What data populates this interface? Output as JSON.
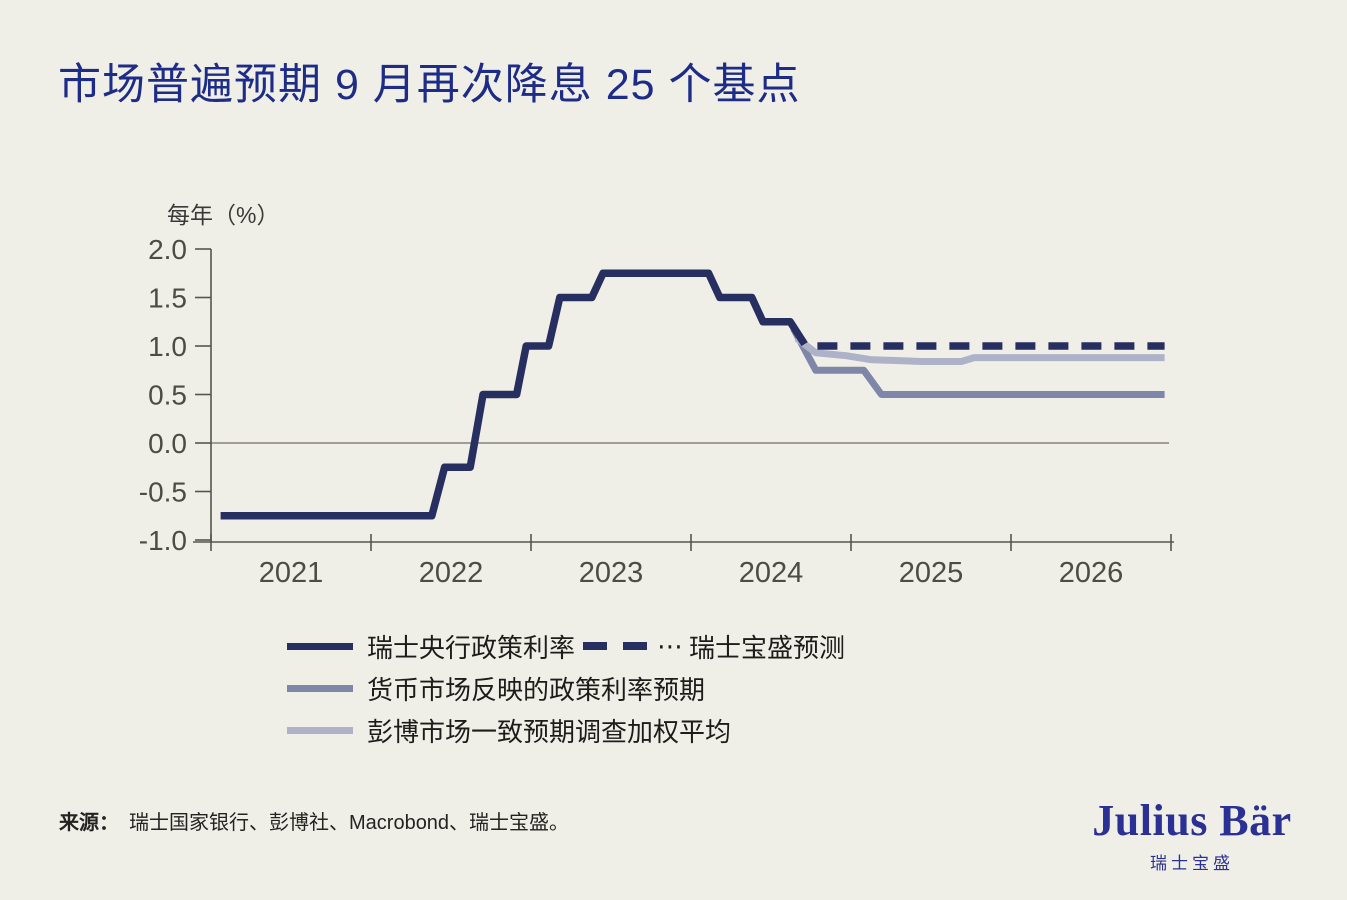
{
  "title": "市场普遍预期 9 月再次降息 25 个基点",
  "chart_data": {
    "type": "line",
    "title": "市场普遍预期 9 月再次降息 25 个基点",
    "y_axis_label": "每年（%）",
    "xlabel": "",
    "ylabel": "每年（%）",
    "ylim": [
      -1.0,
      2.0
    ],
    "xlim": [
      2020.9,
      2027.05
    ],
    "grid": false,
    "zero_line": true,
    "legend_position": "below",
    "y_ticks": [
      2.0,
      1.5,
      1.0,
      0.5,
      0.0,
      -0.5,
      -1.0
    ],
    "y_tick_labels": [
      "2.0",
      "1.5",
      "1.0",
      "0.5",
      "0.0",
      "-0.5",
      "-1.0"
    ],
    "x_tick_years": [
      2021,
      2022,
      2023,
      2024,
      2025,
      2026,
      2027
    ],
    "x_labels": [
      "2021",
      "2022",
      "2023",
      "2024",
      "2025",
      "2026"
    ],
    "series": [
      {
        "id": "money-market-expectations",
        "name": "货币市场反映的政策利率预期",
        "color_key": "medium_blue_gray",
        "width": 7,
        "dash": null,
        "points": [
          [
            2024.64,
            1.18
          ],
          [
            2024.78,
            0.75
          ],
          [
            2025.08,
            0.75
          ],
          [
            2025.19,
            0.5
          ],
          [
            2026.96,
            0.5
          ]
        ]
      },
      {
        "id": "bloomberg-consensus-survey",
        "name": "彭博市场一致预期调查加权平均",
        "color_key": "light_blue_gray",
        "width": 7,
        "dash": null,
        "points": [
          [
            2024.66,
            1.08
          ],
          [
            2024.78,
            0.93
          ],
          [
            2024.97,
            0.9
          ],
          [
            2025.12,
            0.86
          ],
          [
            2025.44,
            0.84
          ],
          [
            2025.69,
            0.84
          ],
          [
            2025.77,
            0.88
          ],
          [
            2026.96,
            0.88
          ]
        ]
      },
      {
        "id": "snb-policy-rate",
        "name": "瑞士央行政策利率",
        "color_key": "navy",
        "width": 7.5,
        "dash": null,
        "points": [
          [
            2021.06,
            -0.75
          ],
          [
            2022.38,
            -0.75
          ],
          [
            2022.46,
            -0.25
          ],
          [
            2022.62,
            -0.25
          ],
          [
            2022.7,
            0.5
          ],
          [
            2022.91,
            0.5
          ],
          [
            2022.97,
            1.0
          ],
          [
            2023.11,
            1.0
          ],
          [
            2023.18,
            1.5
          ],
          [
            2023.38,
            1.5
          ],
          [
            2023.45,
            1.75
          ],
          [
            2024.11,
            1.75
          ],
          [
            2024.18,
            1.5
          ],
          [
            2024.38,
            1.5
          ],
          [
            2024.45,
            1.25
          ],
          [
            2024.62,
            1.25
          ],
          [
            2024.71,
            1.02
          ]
        ]
      },
      {
        "id": "julius-baer-forecast",
        "name": "瑞士宝盛预测",
        "color_key": "navy",
        "width": 7.5,
        "dash": "20 13",
        "points": [
          [
            2024.79,
            1.0
          ],
          [
            2026.96,
            1.0
          ]
        ]
      }
    ]
  },
  "legend": {
    "snb_label": "瑞士央行政策利率",
    "forecast_dots": "⋯",
    "forecast_label": "瑞士宝盛预测",
    "money_market_label": "货币市场反映的政策利率预期",
    "bloomberg_label": "彭博市场一致预期调查加权平均"
  },
  "source": {
    "label": "来源：",
    "text": "瑞士国家银行、彭博社、Macrobond、瑞士宝盛。"
  },
  "logo": {
    "name": "Julius Bär",
    "subname": "瑞士宝盛"
  },
  "colors": {
    "background": "#f0efe7",
    "navy": "#272e60",
    "medium_blue_gray": "#7f87a9",
    "light_blue_gray": "#adb2c8",
    "title_blue": "#1d2c88",
    "logo_blue": "#2b3094",
    "axis": "#55554e",
    "tick_text": "#4b4b47",
    "zero_line": "#85847c",
    "legend_text": "#1c1c1a",
    "source_text": "#232321"
  }
}
